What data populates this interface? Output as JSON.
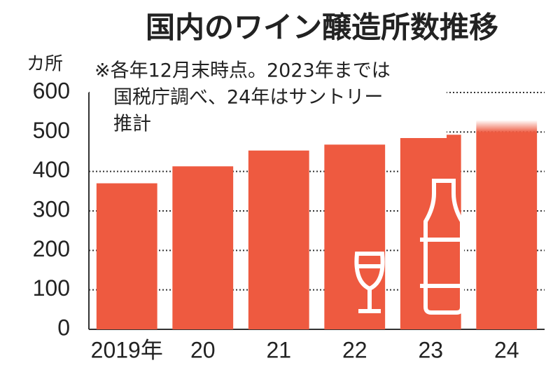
{
  "chart_data": {
    "type": "bar",
    "title": "国内のワイン醸造所数推移",
    "y_label": "カ所",
    "note": [
      "※各年12月末時点。2023年までは",
      "国税庁調べ、24年はサントリー",
      "推計"
    ],
    "categories": [
      "2019年",
      "20",
      "21",
      "22",
      "23",
      "24"
    ],
    "values": [
      370,
      413,
      453,
      468,
      493,
      530
    ],
    "color": "#ee5a40",
    "ylim": [
      0,
      600
    ],
    "yticks": [
      0,
      100,
      200,
      300,
      400,
      500,
      600
    ],
    "grid": true
  }
}
